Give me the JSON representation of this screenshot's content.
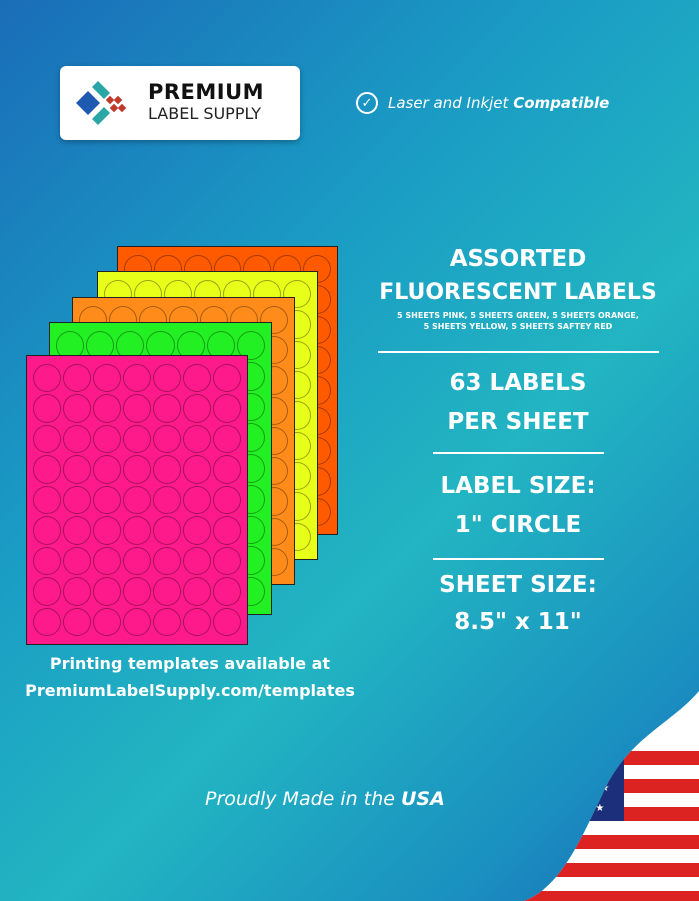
{
  "logo": {
    "line1": "PREMIUM",
    "line2": "LABEL SUPPLY"
  },
  "compat": {
    "prefix": "Laser and Inkjet ",
    "bold": "Compatible"
  },
  "sheets": {
    "colors": [
      "#ff5a00",
      "#e8ff1a",
      "#ff8c1a",
      "#22f022",
      "#ff1a8c"
    ],
    "columns": 7,
    "rows": 9
  },
  "product": {
    "title1": "ASSORTED",
    "title2": "FLUORESCENT LABELS",
    "desc1": "5 SHEETS PINK, 5 SHEETS GREEN, 5 SHEETS ORANGE,",
    "desc2": "5 SHEETS YELLOW, 5 SHEETS SAFTEY RED",
    "count1": "63 LABELS",
    "count2": "PER SHEET",
    "size1": "LABEL SIZE:",
    "size2": "1\" CIRCLE",
    "sheet1": "SHEET SIZE:",
    "sheet2": "8.5\" x 11\""
  },
  "templates": {
    "line1": "Printing templates available at",
    "line2": "PremiumLabelSupply.com/templates"
  },
  "made": {
    "prefix": "Proudly Made in the ",
    "bold": "USA"
  }
}
